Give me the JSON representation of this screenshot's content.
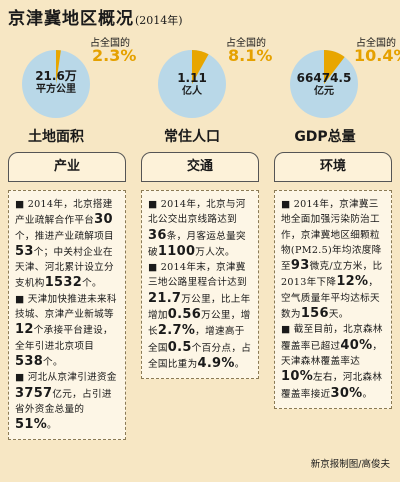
{
  "header": {
    "title": "京津冀地区概况",
    "year": "(2014年)"
  },
  "pies": [
    {
      "value": "21.6万",
      "unit": "平方公里",
      "share_label": "占全国的",
      "share": "2.3%",
      "share_fraction": 0.023,
      "caption": "土地面积"
    },
    {
      "value": "1.11",
      "unit": "亿人",
      "share_label": "占全国的",
      "share": "8.1%",
      "share_fraction": 0.081,
      "caption": "常住人口"
    },
    {
      "value": "66474.5",
      "unit": "亿元",
      "share_label": "占全国的",
      "share": "10.4%",
      "share_fraction": 0.104,
      "caption": "GDP总量"
    }
  ],
  "colors": {
    "pie_base": "#b9d8e8",
    "pie_slice": "#e8a600",
    "accent": "#e5a100",
    "background": "#f7e7c4"
  },
  "sections": {
    "industry": {
      "heading": "产业",
      "p1": [
        "■ 2014年，北京",
        "搭建产业疏解合作",
        "平台",
        "30",
        "个，推进产业",
        "疏解项目",
        "53",
        "个；",
        "中关村企业在天津、",
        "河北累计设立分支",
        "机构",
        "1532",
        "个。"
      ],
      "p2": [
        "■ 天津加快推",
        "进未来科技城、京津",
        "产业新城等",
        "12",
        "个承",
        "接平台建设，全年引进",
        "北京项目",
        "538",
        "个。"
      ],
      "p3": [
        "■ 河北从京津",
        "引进资金",
        "3757",
        "亿元，占引进省外资",
        "金总量的",
        "51%",
        "。"
      ]
    },
    "transport": {
      "heading": "交通",
      "p1": [
        "■ 2014年，北",
        "京与河北公交出京",
        "线路达到",
        "36",
        "条，",
        "月客运总量突破",
        "1100",
        "万人次。"
      ],
      "p2": [
        "■ 2014年末，",
        "京津冀三地公路里",
        "程合计达到",
        "21.7",
        "万公里，比",
        "上年增加",
        "0.56",
        "万公里，增长",
        "2.7%",
        "，增速高于",
        "全国",
        "0.5",
        "个百分",
        "点，占全国比重为",
        "4.9%",
        "。"
      ]
    },
    "environment": {
      "heading": "环境",
      "p1": [
        "■ 2014年，京",
        "津冀三地全面加强",
        "污染防治工作，京",
        "津冀地区细颗粒物",
        "(PM2.5)年均浓度",
        "降至",
        "93",
        "微克/立",
        "方米，比2013年下",
        "降",
        "12%",
        "，空气质",
        "量年平均达标天数",
        "为",
        "156",
        "天。"
      ],
      "p2": [
        "■ 截至目前，北",
        "京森林覆盖率已超",
        "过",
        "40%",
        "，天津森",
        "林覆盖率达",
        "10%",
        "左右，河北森林覆盖",
        "率接近",
        "30%",
        "。"
      ]
    }
  },
  "credit": "新京报制图/高俊夫"
}
